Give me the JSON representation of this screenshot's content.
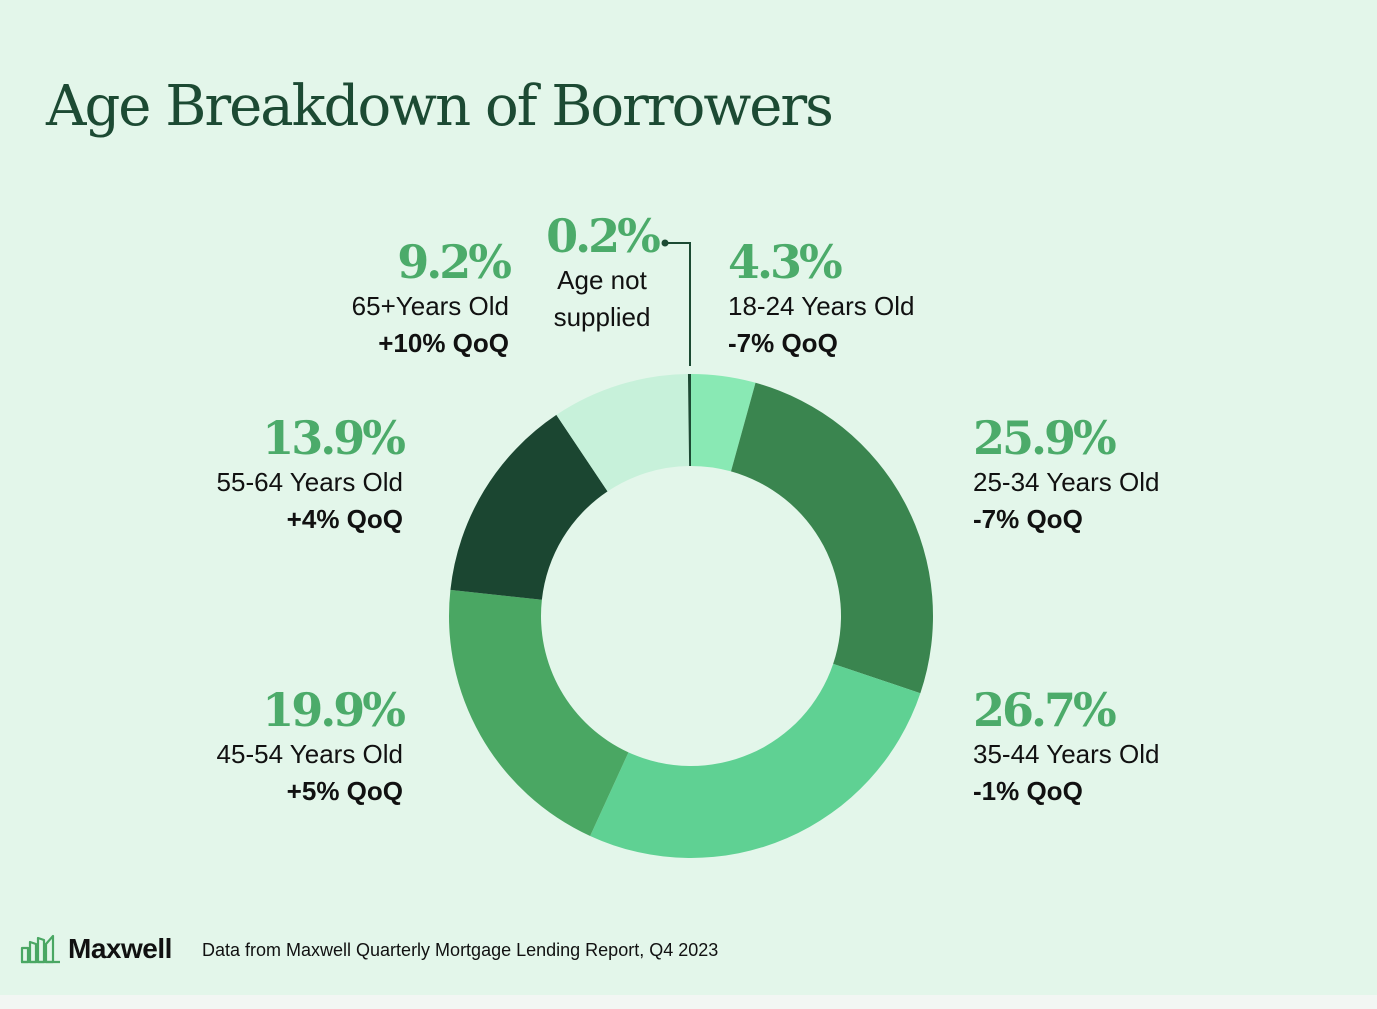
{
  "title": "Age Breakdown of Borrowers",
  "chart_data": {
    "type": "pie",
    "variant": "donut",
    "title": "Age Breakdown of Borrowers",
    "slices": [
      {
        "id": "a1824",
        "label": "18-24 Years Old",
        "pct_label": "4.3%",
        "value": 4.3,
        "qoq": "-7% QoQ",
        "color": "#89e9b4"
      },
      {
        "id": "a2534",
        "label": "25-34 Years Old",
        "pct_label": "25.9%",
        "value": 25.9,
        "qoq": "-7% QoQ",
        "color": "#3a854f"
      },
      {
        "id": "a3544",
        "label": "35-44 Years Old",
        "pct_label": "26.7%",
        "value": 26.7,
        "qoq": "-1% QoQ",
        "color": "#5fd193"
      },
      {
        "id": "a4554",
        "label": "45-54 Years Old",
        "pct_label": "19.9%",
        "value": 19.9,
        "qoq": "+5% QoQ",
        "color": "#4aa763"
      },
      {
        "id": "a5564",
        "label": "55-64 Years Old",
        "pct_label": "13.9%",
        "value": 13.9,
        "qoq": "+4% QoQ",
        "color": "#1b4631"
      },
      {
        "id": "a65",
        "label": "65+Years Old",
        "pct_label": "9.2%",
        "value": 9.2,
        "qoq": "+10% QoQ",
        "color": "#c7f1da"
      },
      {
        "id": "ans",
        "label_line1": "Age not",
        "label_line2": "supplied",
        "pct_label": "0.2%",
        "value": 0.2,
        "color": "#1c4a33"
      }
    ]
  },
  "footer": {
    "logo_text": "Maxwell",
    "source": "Data from Maxwell Quarterly Mortgage Lending Report, Q4 2023"
  },
  "colors": {
    "background": "#e3f6ea",
    "title": "#1c4a33",
    "percent": "#4cab6a"
  }
}
